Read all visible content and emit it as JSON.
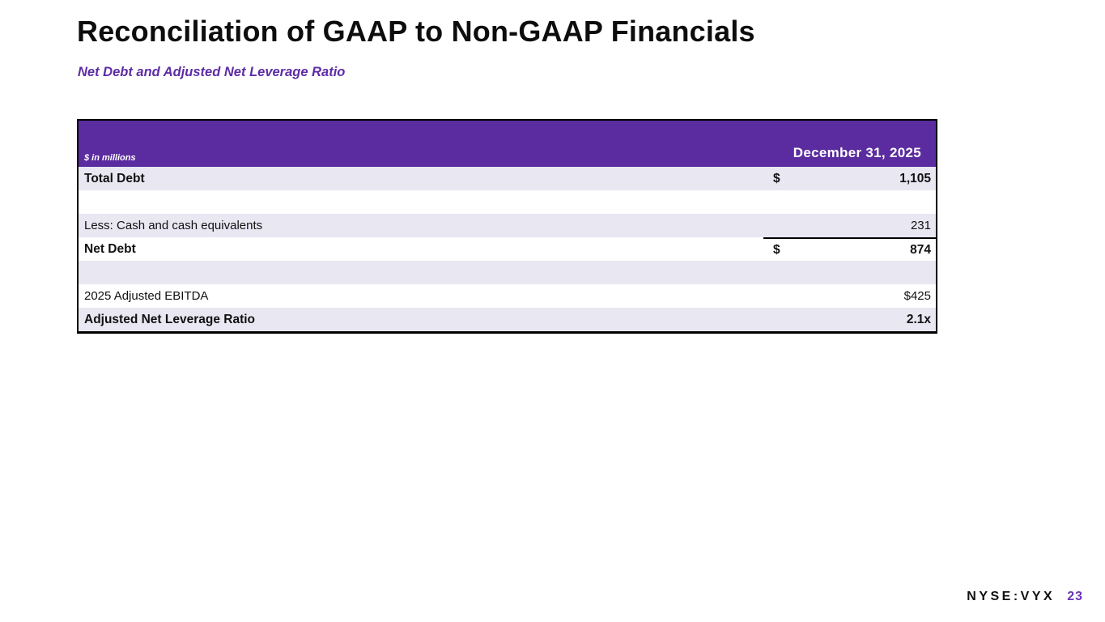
{
  "slide": {
    "title": "Reconciliation of GAAP to Non-GAAP Financials",
    "subtitle": "Net Debt and Adjusted Net Leverage Ratio"
  },
  "table": {
    "units_note": "$ in millions",
    "column_header": "December 31, 2025",
    "rows": [
      {
        "label": "Total Debt",
        "dollar": "$",
        "value": "1,105"
      },
      {
        "label": "",
        "dollar": "",
        "value": ""
      },
      {
        "label": "Less: Cash and cash equivalents",
        "dollar": "",
        "value": "231"
      },
      {
        "label": "Net Debt",
        "dollar": "$",
        "value": "874"
      },
      {
        "label": "",
        "dollar": "",
        "value": ""
      },
      {
        "label": "2025 Adjusted EBITDA",
        "dollar": "",
        "value": "$425"
      },
      {
        "label": "Adjusted Net Leverage Ratio",
        "dollar": "",
        "value": "2.1x"
      }
    ]
  },
  "footer": {
    "ticker": "NYSE:VYX",
    "page_number": "23"
  },
  "colors": {
    "header_bg": "#5B2CA0",
    "row_shade": "#E8E7F2",
    "accent_purple": "#5E2CA5",
    "page_number_purple": "#6B35B8"
  }
}
